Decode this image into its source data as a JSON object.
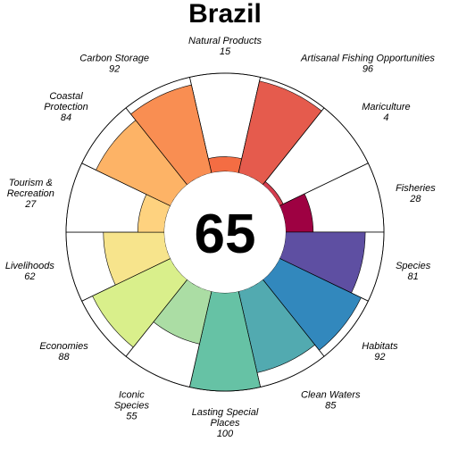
{
  "chart_data": {
    "type": "flower",
    "title": "Brazil",
    "center_value": "65",
    "petals": [
      {
        "name": "Natural Products",
        "lines": [
          "Natural Products"
        ],
        "value": 15,
        "color": "#f46d43"
      },
      {
        "name": "Artisanal Fishing Opportunities",
        "lines": [
          "Artisanal Fishing Opportunities"
        ],
        "value": 96,
        "color": "#e55b4d"
      },
      {
        "name": "Mariculture",
        "lines": [
          "Mariculture"
        ],
        "value": 4,
        "color": "#d53e4f"
      },
      {
        "name": "Fisheries",
        "lines": [
          "Fisheries"
        ],
        "value": 28,
        "color": "#9e0142"
      },
      {
        "name": "Species",
        "lines": [
          "Species"
        ],
        "value": 81,
        "color": "#5e4fa2"
      },
      {
        "name": "Habitats",
        "lines": [
          "Habitats"
        ],
        "value": 92,
        "color": "#3288bd"
      },
      {
        "name": "Clean Waters",
        "lines": [
          "Clean Waters"
        ],
        "value": 85,
        "color": "#52aab0"
      },
      {
        "name": "Lasting Special Places",
        "lines": [
          "Lasting Special",
          "Places"
        ],
        "value": 100,
        "color": "#66c2a5"
      },
      {
        "name": "Iconic Species",
        "lines": [
          "Iconic",
          "Species"
        ],
        "value": 55,
        "color": "#abdda4"
      },
      {
        "name": "Economies",
        "lines": [
          "Economies"
        ],
        "value": 88,
        "color": "#d9ef8b"
      },
      {
        "name": "Livelihoods",
        "lines": [
          "Livelihoods"
        ],
        "value": 62,
        "color": "#f7e48c"
      },
      {
        "name": "Tourism & Recreation",
        "lines": [
          "Tourism &",
          "Recreation"
        ],
        "value": 27,
        "color": "#fed27f"
      },
      {
        "name": "Coastal Protection",
        "lines": [
          "Coastal",
          "Protection"
        ],
        "value": 84,
        "color": "#fdb366"
      },
      {
        "name": "Carbon Storage",
        "lines": [
          "Carbon Storage"
        ],
        "value": 92,
        "color": "#f98e52"
      }
    ],
    "value_range": [
      0,
      100
    ]
  }
}
